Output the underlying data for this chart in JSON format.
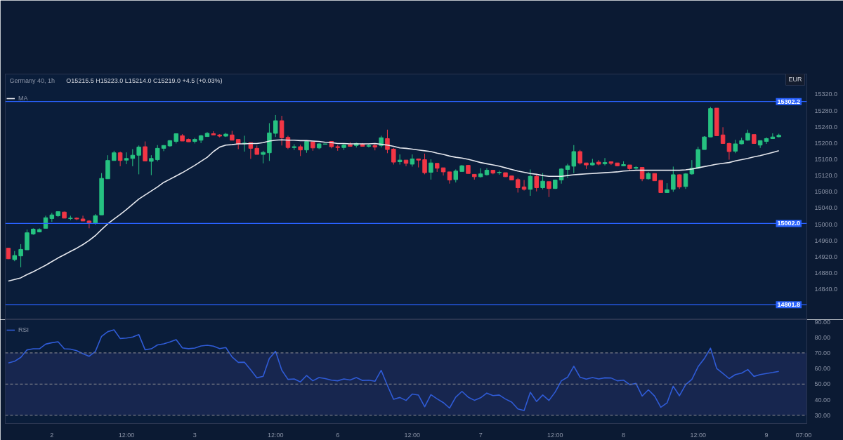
{
  "chart_data": [
    {
      "type": "candlestick",
      "title": "Germany 40, 1h",
      "subtitle": "O15215.5 H15223.0 L15214.0 C15219.0 +4.5 (+0.03%)",
      "ylabel": "EUR",
      "categories": [
        null,
        null,
        null,
        null,
        null,
        null,
        null,
        null,
        null,
        null,
        null,
        null,
        null,
        null,
        null,
        null,
        null,
        null,
        null,
        null,
        null,
        null,
        null,
        null,
        null,
        null,
        null,
        null,
        null,
        null,
        null,
        null,
        null,
        null,
        null,
        null,
        null,
        null,
        null,
        null,
        null,
        null,
        null,
        null,
        null,
        null,
        null,
        null,
        null,
        null,
        null,
        null,
        null,
        null,
        null,
        null,
        null,
        null,
        null,
        null,
        null,
        null,
        null,
        null,
        null,
        null,
        null,
        null,
        null,
        null,
        null,
        null,
        null,
        null,
        null,
        null,
        null,
        null,
        null,
        null,
        null,
        null,
        null,
        null,
        null,
        null,
        null,
        null,
        null,
        null,
        null,
        null,
        null,
        null,
        null,
        null,
        null,
        null,
        null,
        null,
        null,
        null,
        null,
        null,
        null,
        null,
        null,
        null,
        null,
        null,
        null,
        null,
        null,
        null,
        null,
        null,
        null,
        null,
        null,
        null,
        null,
        null,
        null,
        null,
        null,
        null,
        null,
        null,
        null
      ],
      "ohlc": [
        [
          14941,
          14942,
          14914,
          14915
        ],
        [
          14913,
          14934,
          14909,
          14923
        ],
        [
          14922,
          14951,
          14894,
          14938
        ],
        [
          14937,
          14987,
          14937,
          14979
        ],
        [
          14976,
          14990,
          14974,
          14988
        ],
        [
          14981,
          14990,
          14980,
          14987
        ],
        [
          14990,
          15021,
          14990,
          15016
        ],
        [
          15014,
          15028,
          15006,
          15023
        ],
        [
          15021,
          15032,
          15018,
          15031
        ],
        [
          15030,
          15031,
          15015,
          15015
        ],
        [
          15014,
          15021,
          15010,
          15015
        ],
        [
          15015,
          15017,
          15010,
          15013
        ],
        [
          15013,
          15021,
          15008,
          15008
        ],
        [
          15008,
          15010,
          14990,
          15003
        ],
        [
          15003,
          15025,
          14999,
          15021
        ],
        [
          15023,
          15126,
          15023,
          15113
        ],
        [
          15112,
          15170,
          15112,
          15157
        ],
        [
          15157,
          15181,
          15157,
          15176
        ],
        [
          15176,
          15179,
          15143,
          15157
        ],
        [
          15158,
          15177,
          15148,
          15162
        ],
        [
          15162,
          15185,
          15143,
          15170
        ],
        [
          15170,
          15194,
          15123,
          15190
        ],
        [
          15191,
          15204,
          15156,
          15156
        ],
        [
          15155,
          15170,
          15121,
          15162
        ],
        [
          15159,
          15195,
          15155,
          15187
        ],
        [
          15187,
          15195,
          15180,
          15194
        ],
        [
          15193,
          15207,
          15191,
          15206
        ],
        [
          15204,
          15224,
          15199,
          15223
        ],
        [
          15218,
          15222,
          15205,
          15205
        ],
        [
          15209,
          15211,
          15203,
          15203
        ],
        [
          15204,
          15213,
          15199,
          15209
        ],
        [
          15207,
          15220,
          15200,
          15218
        ],
        [
          15216,
          15227,
          15216,
          15224
        ],
        [
          15223,
          15229,
          15220,
          15220
        ],
        [
          15220,
          15222,
          15214,
          15217
        ],
        [
          15217,
          15225,
          15215,
          15222
        ],
        [
          15220,
          15230,
          15207,
          15207
        ],
        [
          15209,
          15209,
          15185,
          15198
        ],
        [
          15199,
          15218,
          15179,
          15200
        ],
        [
          15201,
          15201,
          15161,
          15187
        ],
        [
          15187,
          15194,
          15172,
          15172
        ],
        [
          15172,
          15181,
          15150,
          15177
        ],
        [
          15176,
          15249,
          15156,
          15225
        ],
        [
          15224,
          15269,
          15215,
          15255
        ],
        [
          15255,
          15267,
          15194,
          15213
        ],
        [
          15214,
          15218,
          15185,
          15189
        ],
        [
          15189,
          15197,
          15183,
          15191
        ],
        [
          15191,
          15196,
          15168,
          15183
        ],
        [
          15183,
          15204,
          15176,
          15204
        ],
        [
          15203,
          15203,
          15181,
          15188
        ],
        [
          15188,
          15199,
          15185,
          15198
        ],
        [
          15197,
          15198,
          15197,
          15198
        ],
        [
          15204,
          15204,
          15187,
          15191
        ],
        [
          15191,
          15195,
          15181,
          15189
        ],
        [
          15189,
          15198,
          15183,
          15195
        ],
        [
          15196,
          15202,
          15192,
          15192
        ],
        [
          15194,
          15201,
          15189,
          15199
        ],
        [
          15197,
          15200,
          15192,
          15192
        ],
        [
          15192,
          15198,
          15189,
          15194
        ],
        [
          15194,
          15199,
          15182,
          15190
        ],
        [
          15194,
          15218,
          15189,
          15213
        ],
        [
          15211,
          15233,
          15175,
          15184
        ],
        [
          15185,
          15188,
          15147,
          15153
        ],
        [
          15154,
          15172,
          15147,
          15158
        ],
        [
          15158,
          15158,
          15143,
          15150
        ],
        [
          15148,
          15172,
          15142,
          15161
        ],
        [
          15161,
          15161,
          15140,
          15158
        ],
        [
          15159,
          15174,
          15123,
          15127
        ],
        [
          15128,
          15160,
          15110,
          15151
        ],
        [
          15150,
          15150,
          15129,
          15138
        ],
        [
          15139,
          15139,
          15120,
          15129
        ],
        [
          15129,
          15129,
          15100,
          15109
        ],
        [
          15110,
          15135,
          15103,
          15131
        ],
        [
          15130,
          15146,
          15129,
          15144
        ],
        [
          15145,
          15146,
          15125,
          15125
        ],
        [
          15123,
          15123,
          15110,
          15117
        ],
        [
          15117,
          15138,
          15115,
          15124
        ],
        [
          15122,
          15138,
          15120,
          15133
        ],
        [
          15133,
          15133,
          15123,
          15126
        ],
        [
          15127,
          15132,
          15122,
          15128
        ],
        [
          15127,
          15127,
          15117,
          15117
        ],
        [
          15119,
          15119,
          15109,
          15109
        ],
        [
          15110,
          15114,
          15078,
          15090
        ],
        [
          15092,
          15109,
          15083,
          15086
        ],
        [
          15086,
          15135,
          15070,
          15118
        ],
        [
          15118,
          15123,
          15081,
          15090
        ],
        [
          15090,
          15126,
          15086,
          15106
        ],
        [
          15105,
          15105,
          15067,
          15088
        ],
        [
          15088,
          15110,
          15087,
          15109
        ],
        [
          15109,
          15138,
          15100,
          15136
        ],
        [
          15135,
          15149,
          15114,
          15144
        ],
        [
          15143,
          15195,
          15126,
          15179
        ],
        [
          15179,
          15183,
          15147,
          15151
        ],
        [
          15151,
          15151,
          15136,
          15146
        ],
        [
          15146,
          15161,
          15145,
          15151
        ],
        [
          15153,
          15158,
          15145,
          15148
        ],
        [
          15149,
          15163,
          15145,
          15152
        ],
        [
          15154,
          15154,
          15146,
          15150
        ],
        [
          15151,
          15151,
          15143,
          15144
        ],
        [
          15144,
          15155,
          15144,
          15147
        ],
        [
          15146,
          15146,
          15132,
          15137
        ],
        [
          15138,
          15143,
          15135,
          15140
        ],
        [
          15140,
          15140,
          15106,
          15112
        ],
        [
          15112,
          15129,
          15110,
          15125
        ],
        [
          15125,
          15125,
          15107,
          15107
        ],
        [
          15108,
          15108,
          15077,
          15078
        ],
        [
          15078,
          15101,
          15077,
          15085
        ],
        [
          15086,
          15142,
          15080,
          15122
        ],
        [
          15122,
          15123,
          15087,
          15092
        ],
        [
          15093,
          15126,
          15087,
          15124
        ],
        [
          15124,
          15158,
          15122,
          15138
        ],
        [
          15138,
          15191,
          15136,
          15184
        ],
        [
          15184,
          15217,
          15184,
          15215
        ],
        [
          15215,
          15289,
          15215,
          15285
        ],
        [
          15286,
          15286,
          15218,
          15218
        ],
        [
          15220,
          15239,
          15199,
          15199
        ],
        [
          15199,
          15201,
          15159,
          15179
        ],
        [
          15180,
          15208,
          15175,
          15198
        ],
        [
          15198,
          15213,
          15197,
          15206
        ],
        [
          15207,
          15233,
          15206,
          15224
        ],
        [
          15221,
          15221,
          15198,
          15199
        ],
        [
          15195,
          15206,
          15188,
          15206
        ],
        [
          15204,
          15214,
          15198,
          15211
        ],
        [
          15211,
          15224,
          15211,
          15215
        ],
        [
          15215.5,
          15223.0,
          15214.0,
          15219.0
        ],
        null,
        null,
        null,
        null
      ],
      "series": [
        {
          "type": "line",
          "name": "MA",
          "color": "#e6e8ee",
          "values": [
            14860,
            14864,
            14868,
            14876,
            14883,
            14891,
            14899,
            14908,
            14917,
            14925,
            14933,
            14941,
            14950,
            14960,
            14972,
            14987,
            15001,
            15013,
            15024,
            15036,
            15049,
            15062,
            15072,
            15082,
            15092,
            15103,
            15111,
            15119,
            15127,
            15136,
            15145,
            15155,
            15165,
            15179,
            15190,
            15195,
            15196,
            15198,
            15198,
            15199,
            15199,
            15201,
            15205,
            15207,
            15208,
            15207,
            15207,
            15206,
            15206,
            15205,
            15204,
            15202,
            15201,
            15199,
            15199,
            15198,
            15198,
            15198,
            15198,
            15199,
            15197,
            15195,
            15192,
            15188,
            15187,
            15185,
            15183,
            15181,
            15179,
            15175,
            15172,
            15168,
            15165,
            15163,
            15160,
            15156,
            15152,
            15149,
            15146,
            15143,
            15139,
            15135,
            15131,
            15128,
            15125,
            15123,
            15120,
            15118,
            15118,
            15118,
            15120,
            15122,
            15123,
            15124,
            15125,
            15126,
            15127,
            15128,
            15129,
            15131,
            15132,
            15133,
            15133,
            15133,
            15133,
            15133,
            15133,
            15133,
            15133,
            15134,
            15136,
            15139,
            15142,
            15145,
            15148,
            15150,
            15152,
            15156,
            15159,
            15162,
            15166,
            15169,
            15173,
            15177,
            15181,
            null,
            null,
            null,
            null
          ]
        }
      ],
      "ref_lines": [
        {
          "axis": "y",
          "value": 15302.2,
          "label": "15302.2",
          "color": "#2962ff"
        },
        {
          "axis": "y",
          "value": 15002.0,
          "label": "15002.0",
          "color": "#2962ff"
        },
        {
          "axis": "y",
          "value": 14801.8,
          "label": "14801.8",
          "color": "#2962ff"
        }
      ],
      "ylim": [
        14765,
        15370
      ],
      "yticks": [
        {
          "value": 14840,
          "label": "14840.0"
        },
        {
          "value": 14880,
          "label": "14880.0"
        },
        {
          "value": 14920,
          "label": "14920.0"
        },
        {
          "value": 14960,
          "label": "14960.0"
        },
        {
          "value": 15000,
          "label": "15000.0"
        },
        {
          "value": 15040,
          "label": "15040.0"
        },
        {
          "value": 15080,
          "label": "15080.0"
        },
        {
          "value": 15120,
          "label": "15120.0"
        },
        {
          "value": 15160,
          "label": "15160.0"
        },
        {
          "value": 15200,
          "label": "15200.0"
        },
        {
          "value": 15240,
          "label": "15240.0"
        },
        {
          "value": 15280,
          "label": "15280.0"
        },
        {
          "value": 15320,
          "label": "15320.0"
        }
      ],
      "tick_labels": "y",
      "legend": "top left"
    },
    {
      "type": "line",
      "categories": [
        null,
        null,
        null,
        null,
        null,
        null,
        null,
        "2",
        null,
        null,
        null,
        null,
        null,
        null,
        null,
        null,
        null,
        null,
        null,
        "12:00",
        null,
        null,
        null,
        null,
        null,
        null,
        null,
        null,
        null,
        null,
        "3",
        null,
        null,
        null,
        null,
        null,
        null,
        null,
        null,
        null,
        null,
        null,
        null,
        "12:00",
        null,
        null,
        null,
        null,
        null,
        null,
        null,
        null,
        null,
        "6",
        null,
        null,
        null,
        null,
        null,
        null,
        null,
        null,
        null,
        null,
        null,
        "12:00",
        null,
        null,
        null,
        null,
        null,
        null,
        null,
        null,
        null,
        null,
        "7",
        null,
        null,
        null,
        null,
        null,
        null,
        null,
        null,
        null,
        null,
        null,
        "12:00",
        null,
        null,
        null,
        null,
        null,
        null,
        null,
        null,
        null,
        null,
        "8",
        null,
        null,
        null,
        null,
        null,
        null,
        null,
        null,
        null,
        null,
        null,
        "12:00",
        null,
        null,
        null,
        null,
        null,
        null,
        null,
        null,
        null,
        null,
        "9",
        null,
        null,
        null,
        null,
        null,
        "07:00"
      ],
      "series": [
        {
          "name": "RSI",
          "color": "#2f5bd6",
          "values": [
            63.5,
            64.6,
            67.1,
            71.9,
            72.6,
            72.6,
            75.6,
            76.5,
            77.1,
            72.6,
            72.4,
            71.4,
            69.5,
            67.8,
            70.9,
            80.6,
            83.6,
            84.8,
            79.2,
            79.5,
            80.2,
            81.7,
            72.0,
            72.6,
            75.1,
            75.8,
            77.0,
            78.5,
            73.2,
            72.7,
            73.1,
            74.4,
            74.9,
            74.3,
            72.7,
            73.4,
            67.4,
            63.9,
            64.0,
            59.1,
            54.0,
            55.0,
            66.4,
            71.0,
            58.9,
            53.0,
            53.3,
            51.4,
            55.5,
            52.1,
            54.2,
            53.5,
            52.5,
            52.1,
            53.3,
            52.6,
            54.2,
            52.3,
            52.5,
            51.8,
            58.8,
            49.1,
            40.2,
            41.4,
            39.5,
            43.6,
            42.9,
            35.4,
            43.2,
            40.5,
            38.1,
            34.6,
            41.6,
            45.3,
            41.6,
            39.6,
            41.2,
            44.2,
            42.6,
            43.0,
            40.4,
            38.4,
            34.0,
            33.0,
            44.7,
            38.8,
            43.0,
            39.5,
            44.9,
            52.1,
            54.4,
            61.4,
            54.4,
            53.2,
            54.2,
            53.3,
            54.0,
            53.9,
            52.1,
            52.5,
            49.6,
            50.4,
            42.3,
            46.3,
            42.3,
            35.1,
            37.9,
            48.6,
            42.5,
            49.6,
            53.0,
            61.1,
            66.3,
            73.0,
            60.0,
            56.8,
            53.5,
            56.1,
            57.0,
            59.3,
            54.9,
            56.1,
            56.8,
            57.4,
            58.1,
            null,
            null,
            null,
            null
          ]
        }
      ],
      "bands": [
        {
          "axis": "y",
          "from": 30,
          "to": 70,
          "color": "#17264f"
        }
      ],
      "ref_lines": [
        {
          "axis": "y",
          "value": 70,
          "color": "#787b86",
          "line_style": "dashed"
        },
        {
          "axis": "y",
          "value": 50,
          "color": "#787b86",
          "line_style": "dashed"
        },
        {
          "axis": "y",
          "value": 30,
          "color": "#787b86",
          "line_style": "dashed"
        }
      ],
      "ylim": [
        24.7,
        91.3
      ],
      "yticks": [
        {
          "value": 30,
          "label": "30.00"
        },
        {
          "value": 40,
          "label": "40.00"
        },
        {
          "value": 50,
          "label": "50.00"
        },
        {
          "value": 60,
          "label": "60.00"
        },
        {
          "value": 70,
          "label": "70.00"
        },
        {
          "value": 80,
          "label": "80.00"
        },
        {
          "value": 90,
          "label": "90.00"
        }
      ],
      "legend": "top left"
    }
  ]
}
